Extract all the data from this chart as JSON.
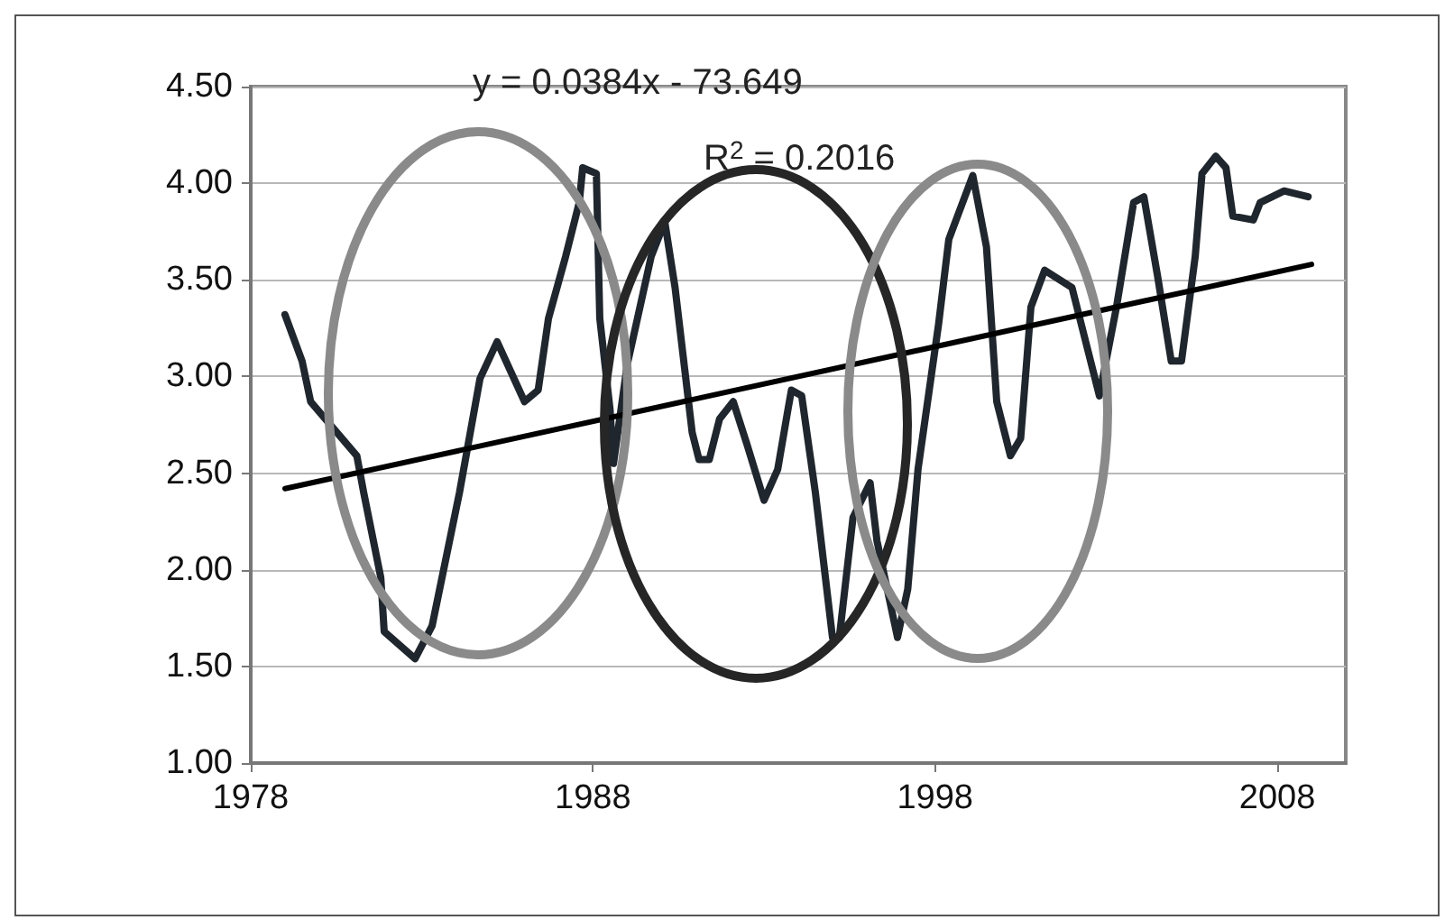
{
  "chart_data": {
    "type": "line",
    "annotations": [
      "y = 0.0384x - 73.649",
      "R$^{2}$ = 0.2016"
    ],
    "xlim": [
      1978,
      2010
    ],
    "xticks": [
      1978,
      1988,
      1998,
      2008
    ],
    "ylim": [
      1,
      4.5
    ],
    "yticks": [
      {
        "value": 1,
        "label": "1.00"
      },
      {
        "value": 1.5,
        "label": "1.50"
      },
      {
        "value": 2,
        "label": "2.00"
      },
      {
        "value": 2.5,
        "label": "2.50"
      },
      {
        "value": 3,
        "label": "3.00"
      },
      {
        "value": 3.5,
        "label": "3.50"
      },
      {
        "value": 4,
        "label": "4.00"
      },
      {
        "value": 4.5,
        "label": "4.50"
      }
    ],
    "grid": "y",
    "marker": "none",
    "line_style": "solid",
    "series": [
      {
        "color": "#1f262d",
        "x": [
          1979.0,
          1979.5,
          1979.75,
          1981.1,
          1981.3,
          1981.8,
          1981.9,
          1982.8,
          1983.3,
          1984.1,
          1984.7,
          1985.2,
          1986.0,
          1986.4,
          1986.7,
          1987.2,
          1987.6,
          1987.7,
          1988.1,
          1988.2,
          1988.5,
          1988.6,
          1989.0,
          1989.7,
          1990.1,
          1990.4,
          1990.9,
          1991.1,
          1991.4,
          1991.7,
          1992.1,
          1992.5,
          1993.0,
          1993.4,
          1993.7,
          1993.8,
          1994.1,
          1994.5,
          1995.0,
          1995.2,
          1995.6,
          1996.1,
          1996.3,
          1996.9,
          1997.2,
          1997.5,
          1998.1,
          1998.4,
          1999.1,
          1999.5,
          1999.8,
          2000.2,
          2000.5,
          2000.8,
          2001.2,
          2002.0,
          2002.5,
          2002.8,
          2003.3,
          2003.8,
          2004.1,
          2004.5,
          2004.9,
          2005.2,
          2005.6,
          2005.8,
          2006.2,
          2006.5,
          2006.7,
          2007.3,
          2007.5,
          2008.2,
          2008.9
        ],
        "values": [
          3.32,
          3.08,
          2.87,
          2.59,
          2.4,
          1.96,
          1.68,
          1.54,
          1.71,
          2.4,
          2.99,
          3.18,
          2.87,
          2.93,
          3.3,
          3.62,
          3.9,
          4.08,
          4.05,
          3.3,
          2.83,
          2.55,
          3.06,
          3.62,
          3.8,
          3.46,
          2.71,
          2.57,
          2.57,
          2.78,
          2.87,
          2.65,
          2.36,
          2.52,
          2.83,
          2.93,
          2.9,
          2.4,
          1.65,
          1.65,
          2.27,
          2.45,
          2.15,
          1.65,
          1.9,
          2.52,
          3.27,
          3.71,
          4.04,
          3.67,
          2.87,
          2.59,
          2.68,
          3.36,
          3.55,
          3.46,
          3.11,
          2.9,
          3.36,
          3.9,
          3.93,
          3.52,
          3.08,
          3.08,
          3.62,
          4.05,
          4.14,
          4.08,
          3.83,
          3.81,
          3.9,
          3.96,
          3.93
        ]
      },
      {
        "color": "#000000",
        "x": [
          1979,
          2009
        ],
        "values": [
          2.42,
          3.58
        ]
      }
    ]
  }
}
